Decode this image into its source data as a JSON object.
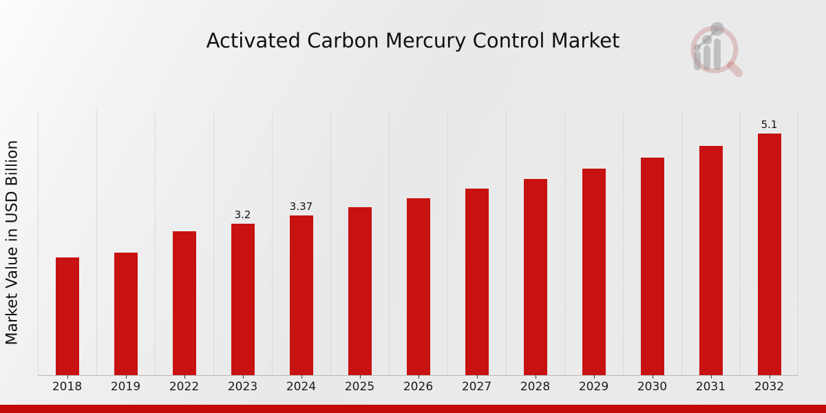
{
  "chart_data": {
    "type": "bar",
    "title": "Activated Carbon Mercury Control Market",
    "xlabel": "",
    "ylabel": "Market Value in USD Billion",
    "categories": [
      "2018",
      "2019",
      "2022",
      "2023",
      "2024",
      "2025",
      "2026",
      "2027",
      "2028",
      "2029",
      "2030",
      "2031",
      "2032"
    ],
    "values": [
      2.48,
      2.59,
      3.04,
      3.2,
      3.37,
      3.55,
      3.74,
      3.94,
      4.15,
      4.37,
      4.6,
      4.84,
      5.1
    ],
    "bar_labels": [
      "",
      "",
      "",
      "3.2",
      "3.37",
      "",
      "",
      "",
      "",
      "",
      "",
      "",
      "5.1"
    ],
    "ylim": [
      0,
      5.6
    ],
    "grid": "vertical dotted lines at category boundaries",
    "legend_position": "none",
    "colors": {
      "bar": "#c81111",
      "grid_line": "#c6c6c6",
      "axis_line": "#b8b8b8",
      "tick": "#333333",
      "text": "#111111"
    }
  },
  "page": {
    "banner_color": "#c50a0a",
    "logo": {
      "name": "magnifying-glass-bar-chart-watermark",
      "ring_color": "rgba(188,102,102,0.30)",
      "chart_color": "rgba(150,150,156,0.50)"
    }
  }
}
